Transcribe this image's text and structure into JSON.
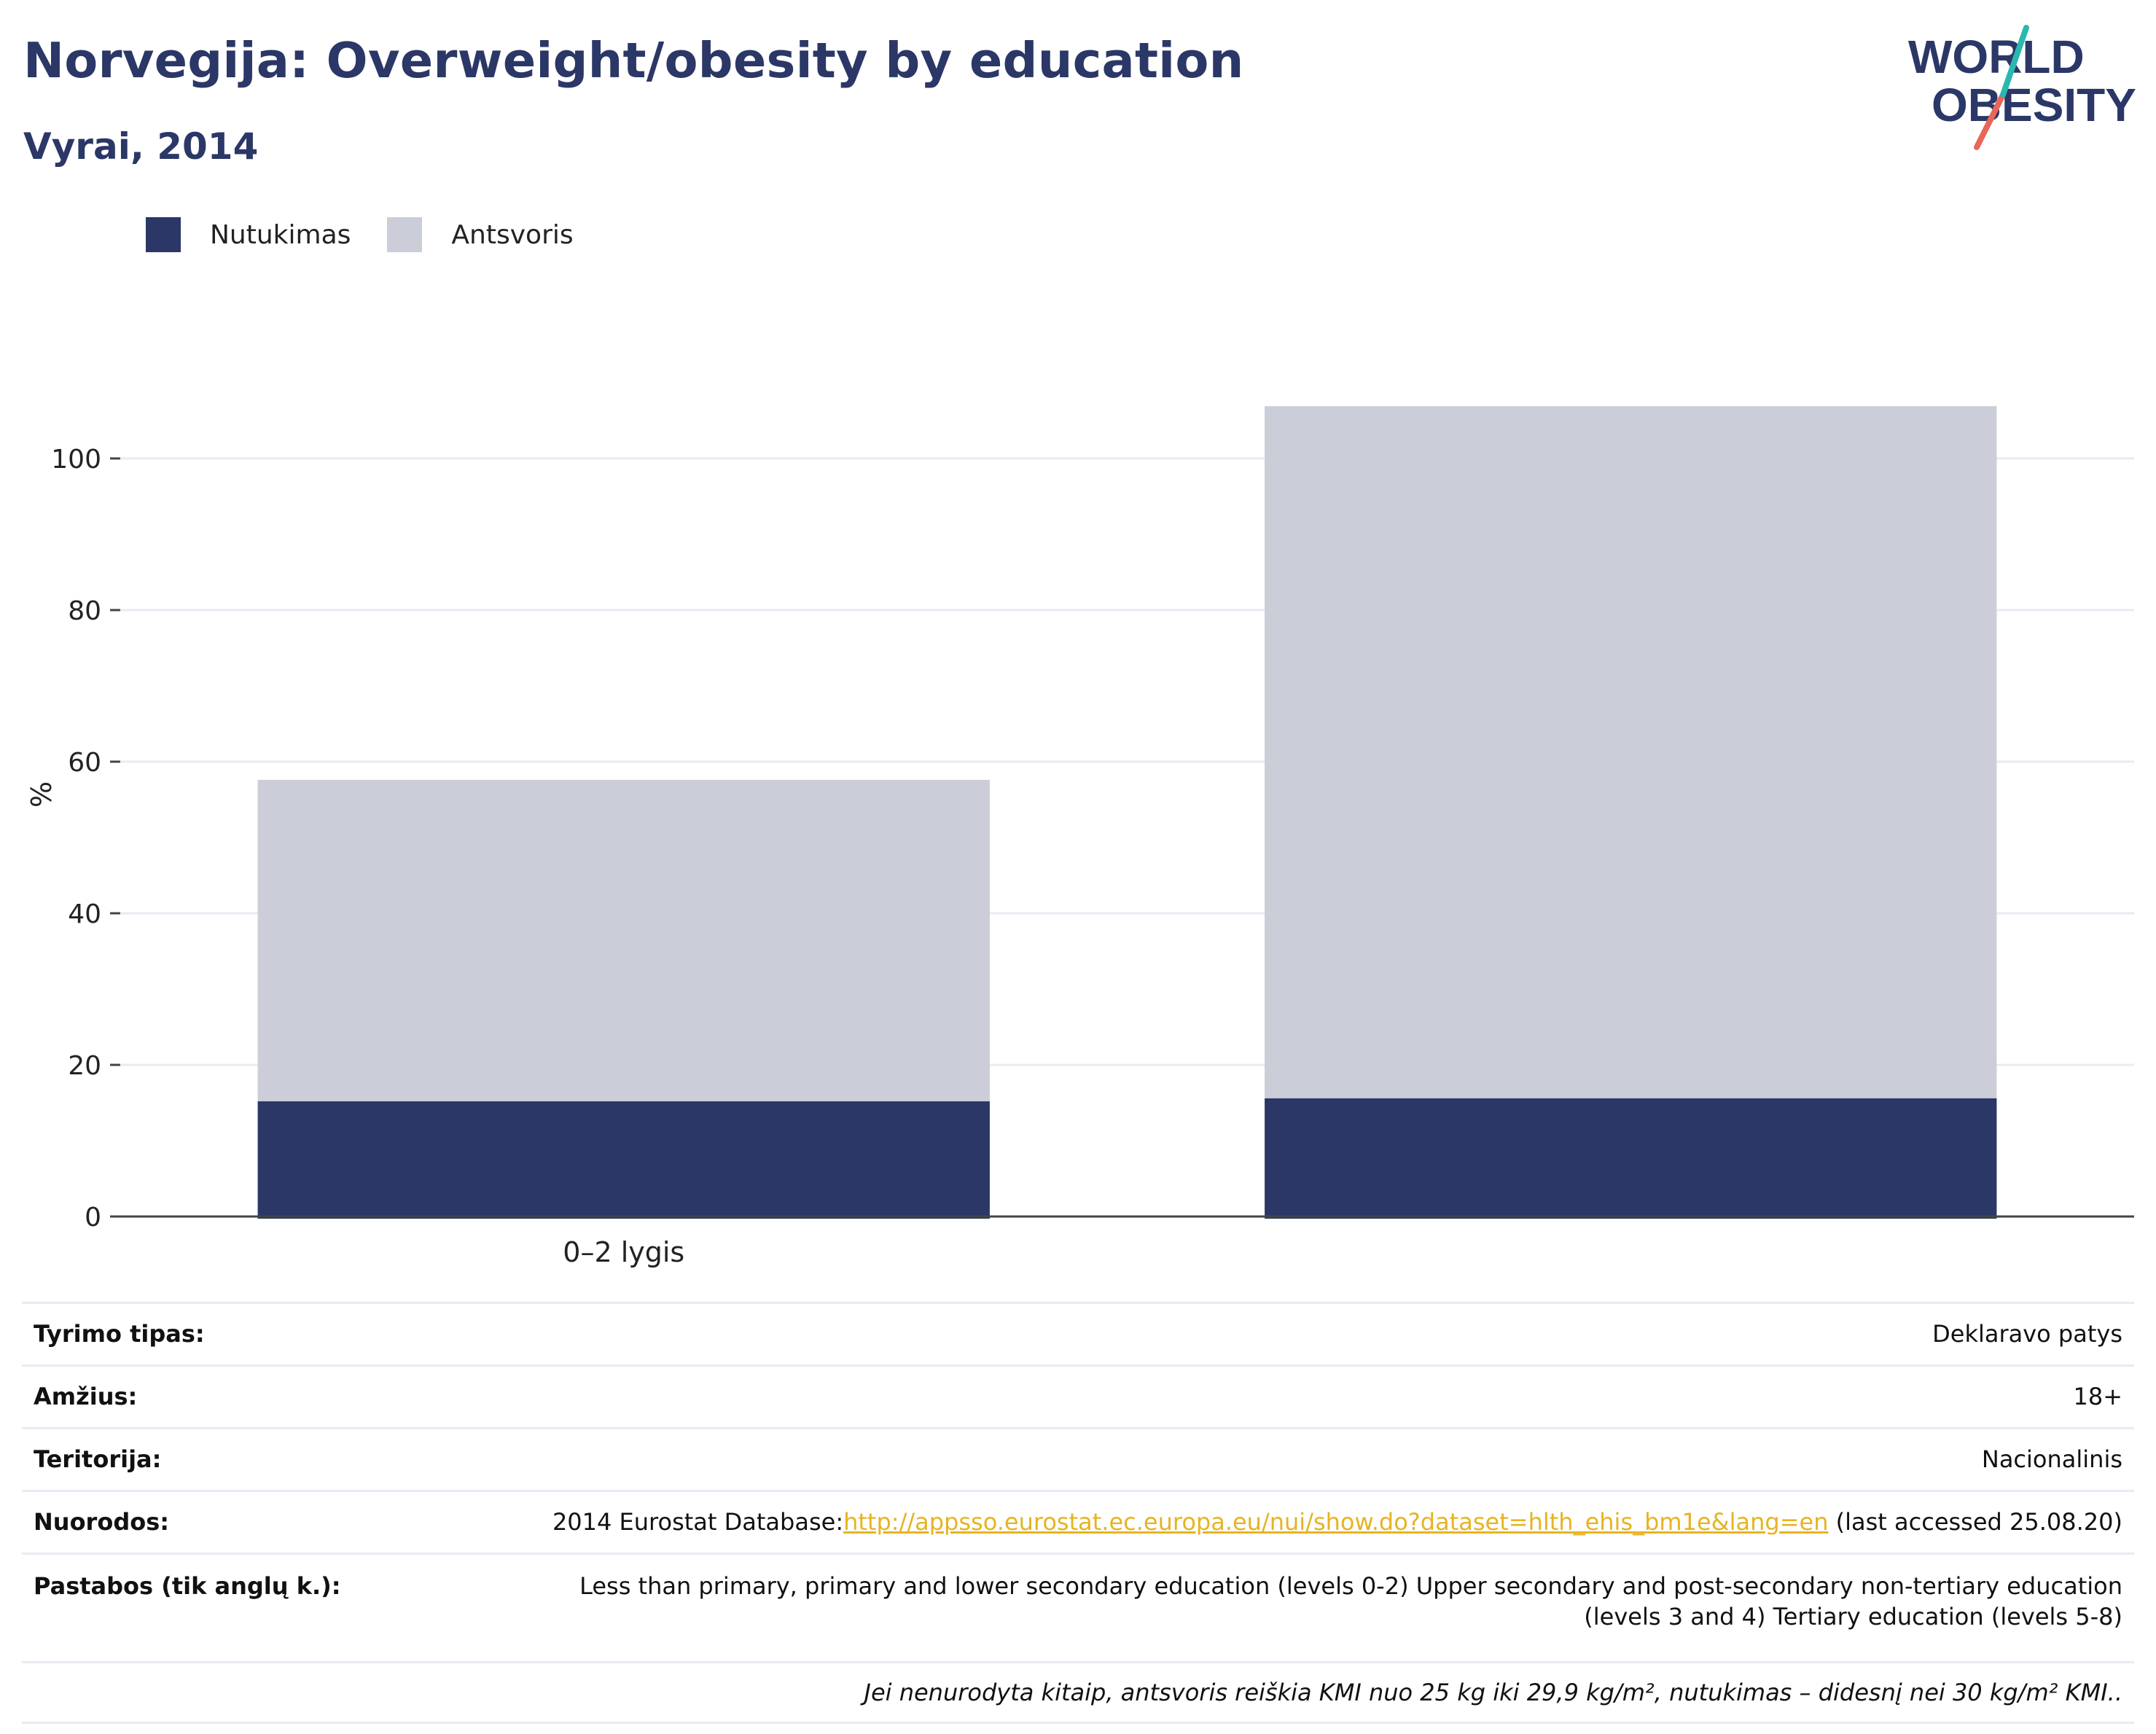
{
  "title": "Norvegija: Overweight/obesity by education",
  "subtitle": "Vyrai, 2014",
  "logo": {
    "line1": "WORLD",
    "line2": "OBESITY"
  },
  "colors": {
    "title": "#2b3766",
    "obesity": "#2b3766",
    "overweight": "#cbcdd8",
    "link": "#e6b422",
    "logo_teal": "#2ab8b0",
    "logo_coral": "#e8665a"
  },
  "legend": [
    {
      "label": "Nutukimas",
      "color": "#2b3766"
    },
    {
      "label": "Antsvoris",
      "color": "#cbcdd8"
    }
  ],
  "chart_data": {
    "type": "bar",
    "stacked": true,
    "categories": [
      "0–2 lygis",
      ""
    ],
    "series": [
      {
        "name": "Nutukimas",
        "values": [
          15.2,
          15.6
        ]
      },
      {
        "name": "Antsvoris",
        "values": [
          42.4,
          91.3
        ]
      }
    ],
    "ylabel": "%",
    "xlabel": "",
    "yticks": [
      0,
      20,
      40,
      60,
      80,
      100
    ],
    "ylim": [
      0,
      115
    ],
    "grid": true,
    "legend_position": "top-left"
  },
  "info": {
    "survey_type": {
      "label": "Tyrimo tipas:",
      "value": "Deklaravo patys"
    },
    "age": {
      "label": "Amžius:",
      "value": "18+"
    },
    "territory": {
      "label": "Teritorija:",
      "value": "Nacionalinis"
    },
    "references": {
      "label": "Nuorodos:",
      "prefix": "2014 Eurostat Database:",
      "link": "http://appsso.eurostat.ec.europa.eu/nui/show.do?dataset=hlth_ehis_bm1e&lang=en",
      "suffix": " (last accessed 25.08.20)"
    },
    "notes": {
      "label": "Pastabos (tik anglų k.):",
      "line1": "Less than primary, primary and lower secondary education (levels 0-2) Upper secondary and post-secondary non-tertiary education",
      "line2": "(levels 3 and 4) Tertiary education (levels 5-8)"
    },
    "footnote": "Jei nenurodyta kitaip, antsvoris reiškia KMI nuo 25 kg iki 29,9 kg/m², nutukimas – didesnį nei 30 kg/m² KMI.."
  }
}
